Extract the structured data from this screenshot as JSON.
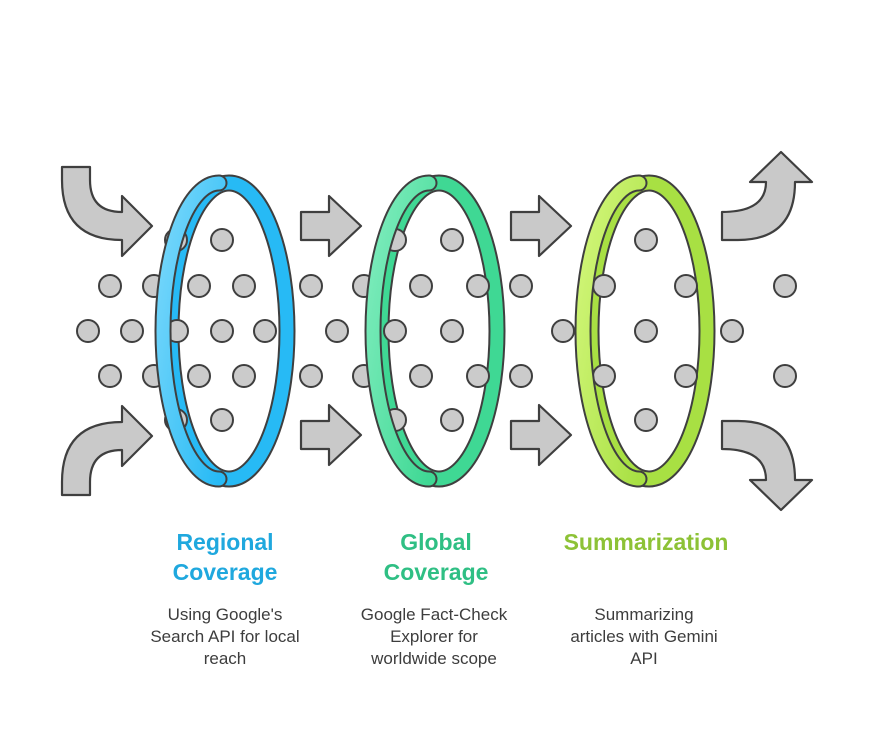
{
  "stages": [
    {
      "title_line1": "Regional",
      "title_line2": "Coverage",
      "description_line1": "Using Google's",
      "description_line2": "Search API for local",
      "description_line3": "reach",
      "color": "#1fa8de",
      "ring_light": "#7ad8fb",
      "ring_dark": "#27baf5"
    },
    {
      "title_line1": "Global",
      "title_line2": "Coverage",
      "description_line1": "Google Fact-Check",
      "description_line2": "Explorer for",
      "description_line3": "worldwide scope",
      "color": "#2fbf84",
      "ring_light": "#80edbe",
      "ring_dark": "#3fd894"
    },
    {
      "title_line1": "",
      "title_line2": "Summarization",
      "description_line1": "Summarizing",
      "description_line2": "articles with Gemini",
      "description_line3": "API",
      "color": "#8dc236",
      "ring_light": "#d3f77b",
      "ring_dark": "#a8e043"
    }
  ],
  "colors": {
    "arrow_fill": "#c9c9c9",
    "arrow_stroke": "#3f3f3f",
    "dot_fill": "#cbcbcb",
    "dot_stroke": "#3f3f3f"
  },
  "icons": {
    "input_top": "curved-arrow-in-top-icon",
    "input_bottom": "curved-arrow-in-bottom-icon",
    "flow": "right-arrow-icon",
    "output_top": "curved-arrow-out-top-icon",
    "output_bottom": "curved-arrow-out-bottom-icon",
    "particle": "data-particle-icon"
  }
}
